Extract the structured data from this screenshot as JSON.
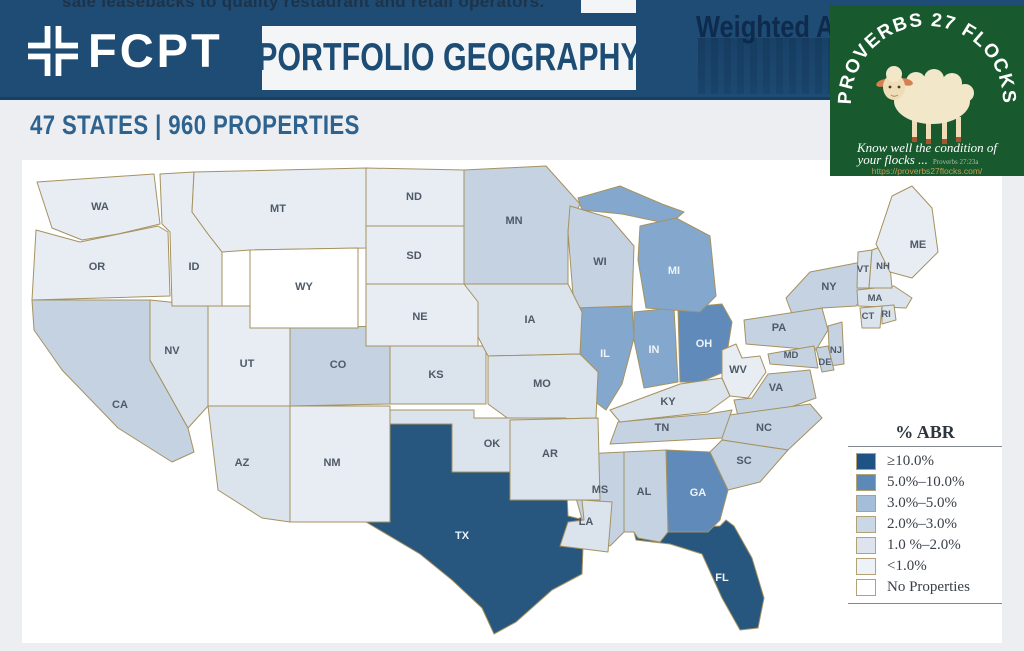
{
  "header": {
    "top_partial_text": "sale leasebacks to quality restaurant and retail operators.",
    "brand": "FCPT",
    "title": "PORTFOLIO GEOGRAPHY",
    "ghost_text": "Weighted Aver",
    "background": "#1e4c74"
  },
  "watermark": {
    "arc_text": "PROVERBS 27 FLOCKS",
    "tagline_line1": "Know well the condition of",
    "tagline_line2": "your flocks ...",
    "verse_ref": "Proverbs 27:23a",
    "url": "https://proverbs27flocks.com/",
    "background": "#185a2e"
  },
  "subtitle": "47 STATES | 960 PROPERTIES",
  "legend": {
    "title": "% ABR",
    "items": [
      {
        "label": "≥10.0%",
        "color": "#1f5386",
        "map_color": "#27567f"
      },
      {
        "label": "5.0%–10.0%",
        "color": "#5d89b8",
        "map_color": "#5f8aba"
      },
      {
        "label": "3.0%–5.0%",
        "color": "#a4bed9",
        "map_color": "#84a8cd"
      },
      {
        "label": "2.0%–3.0%",
        "color": "#c9d7e7",
        "map_color": "#c4d2e2"
      },
      {
        "label": "1.0 %–2.0%",
        "color": "#dde4ee",
        "map_color": "#dbe3ed"
      },
      {
        "label": "<1.0%",
        "color": "#edf2f8",
        "map_color": "#e8edf4"
      },
      {
        "label": "No Properties",
        "color": "#ffffff",
        "map_color": "#ffffff"
      }
    ]
  },
  "chart_data": {
    "type": "heatmap",
    "subtype": "us_state_choropleth",
    "title": "PORTFOLIO GEOGRAPHY",
    "subtitle": "47 STATES | 960 PROPERTIES",
    "legend_title": "% ABR",
    "legend_position": "right",
    "categories": [
      "≥10.0%",
      "5.0%–10.0%",
      "3.0%–5.0%",
      "2.0%–3.0%",
      "1.0 %–2.0%",
      "<1.0%",
      "No Properties"
    ],
    "states": {
      "TX": "≥10.0%",
      "FL": "≥10.0%",
      "OH": "5.0%–10.0%",
      "GA": "5.0%–10.0%",
      "IL": "3.0%–5.0%",
      "IN": "3.0%–5.0%",
      "MI": "3.0%–5.0%",
      "MN": "2.0%–3.0%",
      "WI": "2.0%–3.0%",
      "CA": "2.0%–3.0%",
      "CO": "2.0%–3.0%",
      "NY": "2.0%–3.0%",
      "PA": "2.0%–3.0%",
      "NJ": "2.0%–3.0%",
      "MD": "2.0%–3.0%",
      "DE": "2.0%–3.0%",
      "VA": "2.0%–3.0%",
      "NC": "2.0%–3.0%",
      "SC": "2.0%–3.0%",
      "TN": "2.0%–3.0%",
      "MS": "2.0%–3.0%",
      "AL": "2.0%–3.0%",
      "NV": "1.0 %–2.0%",
      "AZ": "1.0 %–2.0%",
      "KS": "1.0 %–2.0%",
      "IA": "1.0 %–2.0%",
      "MO": "1.0 %–2.0%",
      "OK": "1.0 %–2.0%",
      "AR": "1.0 %–2.0%",
      "LA": "1.0 %–2.0%",
      "KY": "1.0 %–2.0%",
      "MA": "1.0 %–2.0%",
      "CT": "1.0 %–2.0%",
      "RI": "1.0 %–2.0%",
      "VT": "1.0 %–2.0%",
      "NH": "1.0 %–2.0%",
      "WA": "<1.0%",
      "OR": "<1.0%",
      "ID": "<1.0%",
      "MT": "<1.0%",
      "ND": "<1.0%",
      "SD": "<1.0%",
      "NE": "<1.0%",
      "NM": "<1.0%",
      "WV": "<1.0%",
      "ME": "<1.0%",
      "UT": "<1.0%",
      "WY": "No Properties"
    }
  }
}
